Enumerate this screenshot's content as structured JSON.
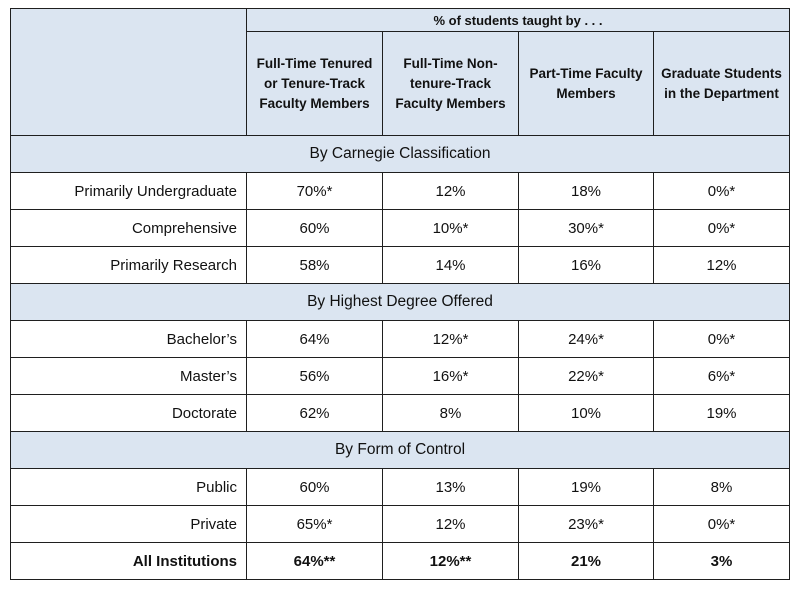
{
  "table": {
    "group_header": "% of students taught by . . .",
    "columns": [
      "Full-Time Tenured or Tenure-Track Faculty Members",
      "Full-Time Non-tenure-Track Faculty Members",
      "Part-Time Faculty Members",
      "Graduate Students in the Department"
    ],
    "sections": [
      {
        "title": "By Carnegie Classification",
        "rows": [
          {
            "label": "Primarily Undergraduate",
            "values": [
              "70%*",
              "12%",
              "18%",
              "0%*"
            ]
          },
          {
            "label": "Comprehensive",
            "values": [
              "60%",
              "10%*",
              "30%*",
              "0%*"
            ]
          },
          {
            "label": "Primarily Research",
            "values": [
              "58%",
              "14%",
              "16%",
              "12%"
            ]
          }
        ]
      },
      {
        "title": "By Highest Degree Offered",
        "rows": [
          {
            "label": "Bachelor’s",
            "values": [
              "64%",
              "12%*",
              "24%*",
              "0%*"
            ]
          },
          {
            "label": "Master’s",
            "values": [
              "56%",
              "16%*",
              "22%*",
              "6%*"
            ]
          },
          {
            "label": "Doctorate",
            "values": [
              "62%",
              "8%",
              "10%",
              "19%"
            ]
          }
        ]
      },
      {
        "title": "By Form of Control",
        "rows": [
          {
            "label": "Public",
            "values": [
              "60%",
              "13%",
              "19%",
              "8%"
            ]
          },
          {
            "label": "Private",
            "values": [
              "65%*",
              "12%",
              "23%*",
              "0%*"
            ]
          }
        ]
      }
    ],
    "total": {
      "label": "All Institutions",
      "values": [
        "64%**",
        "12%**",
        "21%",
        "3%"
      ]
    }
  }
}
